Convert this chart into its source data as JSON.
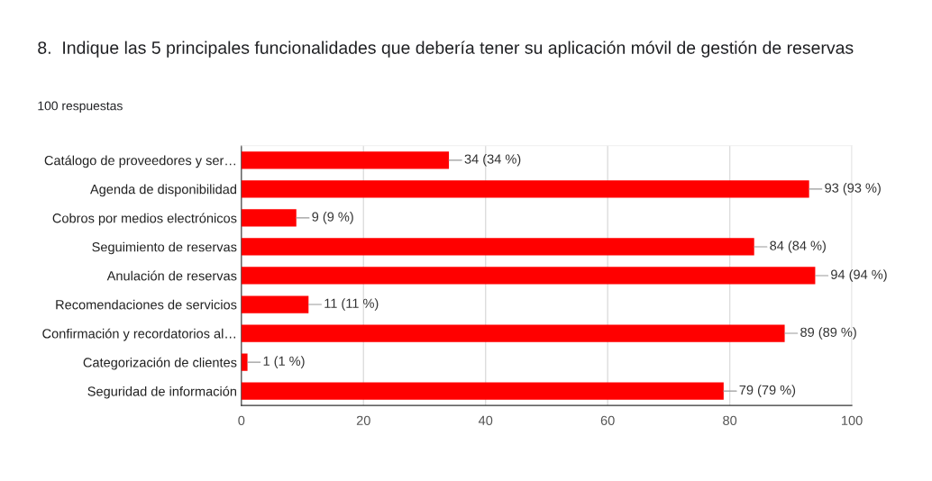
{
  "chart_data": {
    "type": "bar",
    "orientation": "horizontal",
    "title": "8.  Indique las 5 principales funcionalidades que debería tener su aplicación móvil de gestión de reservas",
    "subtitle": "100 respuestas",
    "categories": [
      "Catálogo de proveedores y ser…",
      "Agenda de disponibilidad",
      "Cobros por medios electrónicos",
      "Seguimiento de reservas",
      "Anulación de reservas",
      "Recomendaciones de servicios",
      "Confirmación y recordatorios al…",
      "Categorización de clientes",
      "Seguridad de información"
    ],
    "values": [
      34,
      93,
      9,
      84,
      94,
      11,
      89,
      1,
      79
    ],
    "value_labels": [
      "34 (34 %)",
      "93 (93 %)",
      "9 (9 %)",
      "84 (84 %)",
      "94 (94 %)",
      "11 (11 %)",
      "89 (89 %)",
      "1 (1 %)",
      "79 (79 %)"
    ],
    "color": "#ff0000",
    "xlim": [
      0,
      100
    ],
    "xticks": [
      0,
      20,
      40,
      60,
      80,
      100
    ],
    "grid": "x",
    "legend": false
  }
}
